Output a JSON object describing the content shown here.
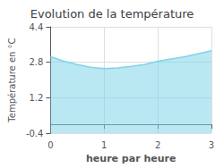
{
  "chart_data": {
    "type": "area",
    "title": "Evolution de la température",
    "xlabel": "heure par heure",
    "ylabel": "Température en °C",
    "x": [
      0,
      0.25,
      0.5,
      0.75,
      1.0,
      1.25,
      1.5,
      1.75,
      2.0,
      2.5,
      3.0
    ],
    "values": [
      3.05,
      2.85,
      2.7,
      2.58,
      2.52,
      2.55,
      2.62,
      2.7,
      2.85,
      3.05,
      3.32
    ],
    "xlim": [
      0,
      3
    ],
    "ylim": [
      -0.4,
      4.4
    ],
    "xticks": [
      0,
      1,
      2,
      3
    ],
    "yticks": [
      -0.4,
      1.2,
      2.8,
      4.4
    ],
    "color": "#7fd4e8",
    "grid": true
  }
}
